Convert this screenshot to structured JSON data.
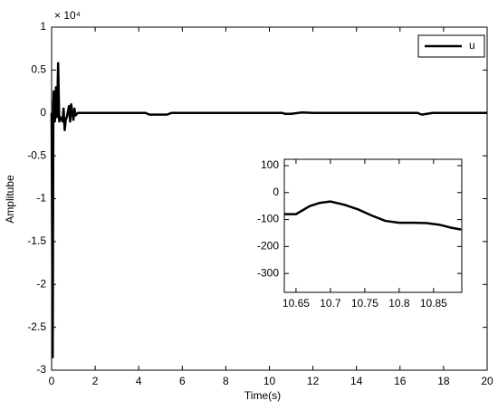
{
  "chart_data": [
    {
      "type": "line",
      "xlabel": "Time(s)",
      "ylabel": "Amplitube",
      "y_exponent": "× 10⁴",
      "xlim": [
        0,
        20
      ],
      "xticks": [
        0,
        2,
        4,
        6,
        8,
        10,
        12,
        14,
        16,
        18,
        20
      ],
      "ylim": [
        -3,
        1
      ],
      "yticks": [
        -3,
        -2.5,
        -2,
        -1.5,
        -1,
        -0.5,
        0,
        0.5,
        1
      ],
      "legend": "upper right",
      "series": [
        {
          "name": "u",
          "color": "#000000",
          "x": [
            0,
            0.05,
            0.08,
            0.1,
            0.15,
            0.2,
            0.25,
            0.3,
            0.35,
            0.4,
            0.5,
            0.55,
            0.6,
            0.65,
            0.7,
            0.8,
            0.85,
            0.9,
            1.0,
            1.05,
            1.1,
            1.2,
            4.3,
            4.5,
            5.3,
            5.5,
            10.6,
            10.7,
            11.0,
            11.5,
            12,
            16.8,
            17.0,
            17.5,
            20
          ],
          "values": [
            0,
            -2.85,
            0.1,
            0.25,
            -0.1,
            0.3,
            -0.05,
            0.58,
            -0.1,
            -0.05,
            -0.1,
            0.05,
            -0.2,
            -0.08,
            -0.05,
            0.08,
            -0.1,
            0.1,
            -0.08,
            0.05,
            -0.03,
            0,
            0,
            -0.02,
            -0.02,
            0,
            0,
            -0.01,
            -0.01,
            0.005,
            0,
            0,
            -0.02,
            0,
            0
          ]
        }
      ]
    },
    {
      "type": "line",
      "xlim": [
        10.633,
        10.891
      ],
      "xticks": [
        10.65,
        10.7,
        10.75,
        10.8,
        10.85
      ],
      "ylim": [
        -370,
        123.5
      ],
      "yticks": [
        -300,
        -200,
        -100,
        0,
        100
      ],
      "series": [
        {
          "color": "#000000",
          "x": [
            10.633,
            10.65,
            10.67,
            10.685,
            10.7,
            10.72,
            10.74,
            10.76,
            10.78,
            10.8,
            10.82,
            10.84,
            10.86,
            10.875,
            10.89
          ],
          "values": [
            -80,
            -80,
            -50,
            -38,
            -33,
            -45,
            -62,
            -85,
            -105,
            -112,
            -112,
            -113,
            -120,
            -130,
            -137
          ]
        }
      ]
    }
  ]
}
